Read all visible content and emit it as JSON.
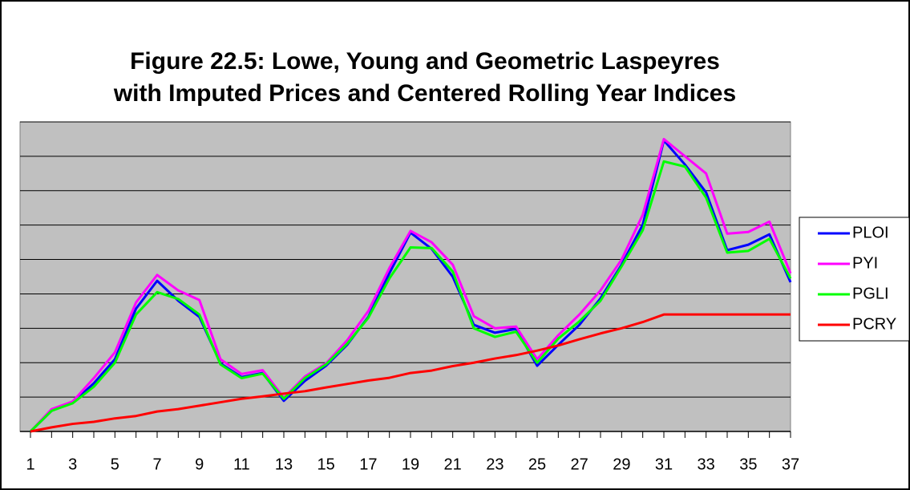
{
  "chart_data": {
    "type": "line",
    "title": [
      "Figure 22.5: Lowe, Young and Geometric Laspeyres",
      "with Imputed Prices and Centered Rolling Year Indices"
    ],
    "categories": [
      1,
      null,
      3,
      null,
      5,
      null,
      7,
      null,
      9,
      null,
      11,
      null,
      13,
      null,
      15,
      null,
      17,
      null,
      19,
      null,
      21,
      null,
      23,
      null,
      25,
      null,
      27,
      null,
      29,
      null,
      31,
      null,
      33,
      null,
      35,
      null,
      37
    ],
    "ylim": [
      0,
      9
    ],
    "yticks": [
      0,
      1,
      2,
      3,
      4,
      5,
      6,
      7,
      8,
      9
    ],
    "grid": true,
    "legend": "right",
    "series": [
      {
        "name": "PLOI",
        "color": "#0000ff",
        "values": [
          0,
          0.6,
          0.84,
          1.4,
          2.1,
          3.57,
          4.38,
          3.8,
          3.33,
          1.98,
          1.58,
          1.7,
          0.89,
          1.47,
          1.91,
          2.52,
          3.33,
          4.6,
          5.78,
          5.31,
          4.5,
          3.1,
          2.87,
          2.98,
          1.91,
          2.52,
          3.1,
          3.87,
          4.85,
          6.01,
          8.46,
          7.76,
          6.95,
          5.27,
          5.43,
          5.73,
          4.34
        ]
      },
      {
        "name": "PYI",
        "color": "#ff00ff",
        "values": [
          0,
          0.65,
          0.87,
          1.55,
          2.3,
          3.75,
          4.55,
          4.1,
          3.82,
          2.1,
          1.67,
          1.78,
          0.98,
          1.6,
          1.98,
          2.65,
          3.5,
          4.75,
          5.83,
          5.5,
          4.85,
          3.35,
          3.0,
          3.05,
          2.1,
          2.8,
          3.4,
          4.1,
          5.0,
          6.3,
          8.5,
          8.0,
          7.5,
          5.75,
          5.8,
          6.1,
          4.6
        ]
      },
      {
        "name": "PGLI",
        "color": "#00ff00",
        "values": [
          0,
          0.6,
          0.82,
          1.3,
          2.0,
          3.4,
          4.05,
          3.85,
          3.4,
          1.95,
          1.55,
          1.68,
          0.95,
          1.55,
          1.95,
          2.55,
          3.3,
          4.45,
          5.35,
          5.33,
          4.65,
          3.0,
          2.75,
          2.9,
          2.0,
          2.7,
          3.2,
          3.8,
          4.8,
          5.85,
          7.85,
          7.7,
          6.8,
          5.2,
          5.25,
          5.6,
          4.45
        ]
      },
      {
        "name": "PCRY",
        "color": "#ff0000",
        "values": [
          0,
          0.12,
          0.22,
          0.28,
          0.38,
          0.45,
          0.58,
          0.65,
          0.75,
          0.85,
          0.95,
          1.02,
          1.1,
          1.17,
          1.28,
          1.38,
          1.48,
          1.56,
          1.7,
          1.77,
          1.9,
          2.0,
          2.12,
          2.22,
          2.35,
          2.5,
          2.68,
          2.85,
          3.0,
          3.18,
          3.4,
          3.4,
          3.4,
          3.4,
          3.4,
          3.4,
          3.4
        ]
      }
    ]
  }
}
